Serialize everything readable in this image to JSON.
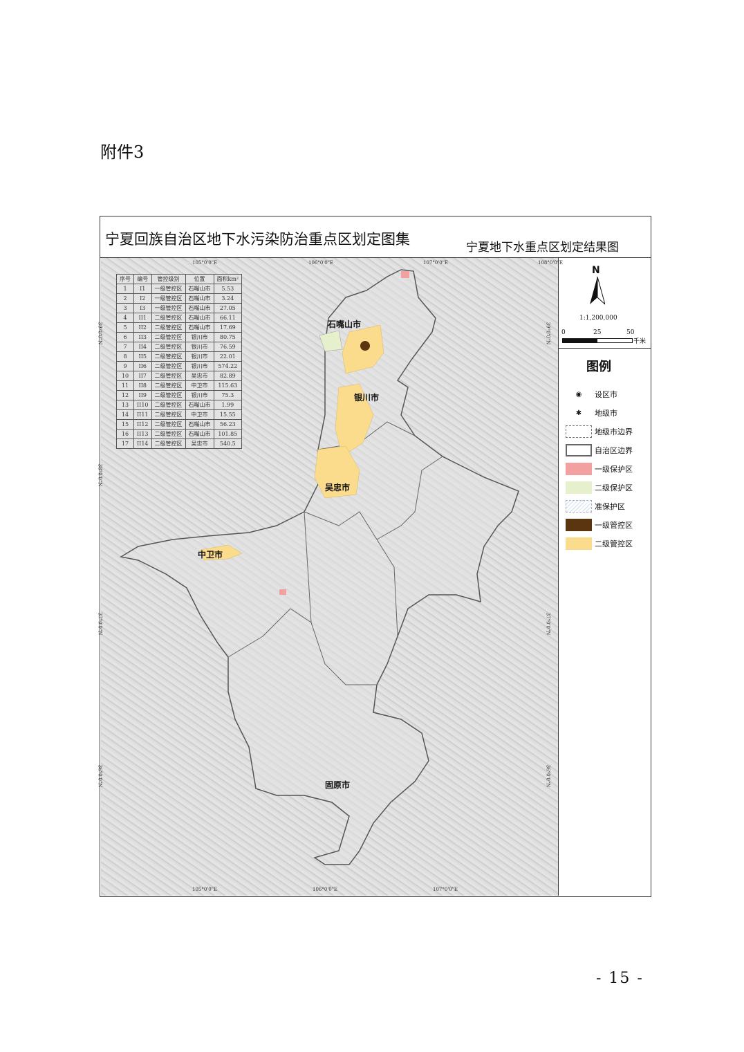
{
  "attachment_label": "附件3",
  "page_number": "- 15 -",
  "map": {
    "atlas_title": "宁夏回族自治区地下水污染防治重点区划定图集",
    "map_title": "宁夏地下水重点区划定结果图",
    "north_label": "N",
    "scale": "1:1,200,000",
    "scale_ticks": [
      "0",
      "25",
      "50"
    ],
    "scale_unit": "千米",
    "longitude_labels": [
      "105°0'0\"E",
      "106°0'0\"E",
      "107°0'0\"E",
      "108°0'0\"E"
    ],
    "latitude_labels": [
      "39°0'0\"N",
      "38°0'0\"N",
      "37°0'0\"N",
      "36°0'0\"N"
    ],
    "cities": [
      "石嘴山市",
      "银川市",
      "吴忠市",
      "中卫市",
      "固原市"
    ],
    "legend": {
      "title": "图例",
      "items": [
        {
          "label": "设区市",
          "symbol": "city-dot"
        },
        {
          "label": "地级市",
          "symbol": "star"
        },
        {
          "label": "地级市边界",
          "color": "#ffffff"
        },
        {
          "label": "自治区边界",
          "color": "#ffffff"
        },
        {
          "label": "一级保护区",
          "color": "#f2a0a0"
        },
        {
          "label": "二级保护区",
          "color": "#e6f0cc"
        },
        {
          "label": "准保护区",
          "color": "#dde8f2"
        },
        {
          "label": "一级管控区",
          "color": "#5a3510"
        },
        {
          "label": "二级管控区",
          "color": "#fbdc8c"
        }
      ]
    },
    "table": {
      "headers": [
        "序号",
        "编号",
        "管控级别",
        "位置",
        "面积km²"
      ],
      "rows": [
        [
          "1",
          "I1",
          "一级管控区",
          "石嘴山市",
          "5.53"
        ],
        [
          "2",
          "I2",
          "一级管控区",
          "石嘴山市",
          "3.24"
        ],
        [
          "3",
          "I3",
          "一级管控区",
          "石嘴山市",
          "27.05"
        ],
        [
          "4",
          "II1",
          "二级管控区",
          "石嘴山市",
          "66.11"
        ],
        [
          "5",
          "II2",
          "二级管控区",
          "石嘴山市",
          "17.69"
        ],
        [
          "6",
          "II3",
          "二级管控区",
          "银川市",
          "80.75"
        ],
        [
          "7",
          "II4",
          "二级管控区",
          "银川市",
          "76.59"
        ],
        [
          "8",
          "II5",
          "二级管控区",
          "银川市",
          "22.01"
        ],
        [
          "9",
          "II6",
          "二级管控区",
          "银川市",
          "574.22"
        ],
        [
          "10",
          "II7",
          "二级管控区",
          "吴忠市",
          "82.89"
        ],
        [
          "11",
          "II8",
          "二级管控区",
          "中卫市",
          "115.63"
        ],
        [
          "12",
          "II9",
          "二级管控区",
          "银川市",
          "75.3"
        ],
        [
          "13",
          "II10",
          "二级管控区",
          "石嘴山市",
          "1.99"
        ],
        [
          "14",
          "II11",
          "二级管控区",
          "中卫市",
          "15.55"
        ],
        [
          "15",
          "II12",
          "二级管控区",
          "石嘴山市",
          "56.23"
        ],
        [
          "16",
          "II13",
          "二级管控区",
          "石嘴山市",
          "101.85"
        ],
        [
          "17",
          "II14",
          "二级管控区",
          "吴忠市",
          "540.5"
        ]
      ]
    }
  }
}
